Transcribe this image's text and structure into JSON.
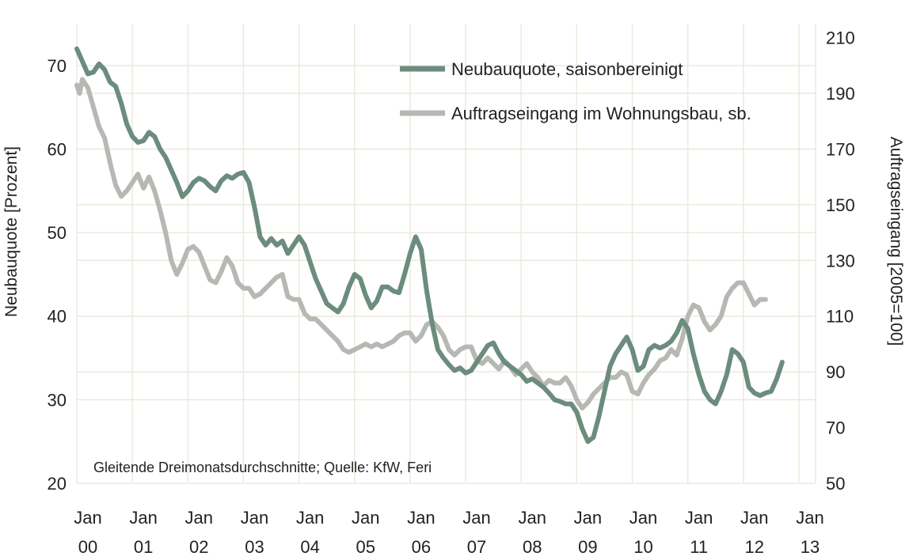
{
  "chart_data": {
    "type": "line",
    "ylabel": "Neubauquote [Prozent]",
    "y2label": "Auftragseingang [2005=100]",
    "ylim": [
      20,
      75
    ],
    "y2lim": [
      50,
      215
    ],
    "yticks": [
      20,
      30,
      40,
      50,
      60,
      70
    ],
    "y2ticks": [
      50,
      70,
      90,
      110,
      130,
      150,
      170,
      190,
      210
    ],
    "xlim": [
      2000,
      2013.3
    ],
    "xticks": [
      {
        "value": 2000,
        "line1": "Jan",
        "line2": "00"
      },
      {
        "value": 2001,
        "line1": "Jan",
        "line2": "01"
      },
      {
        "value": 2002,
        "line1": "Jan",
        "line2": "02"
      },
      {
        "value": 2003,
        "line1": "Jan",
        "line2": "03"
      },
      {
        "value": 2004,
        "line1": "Jan",
        "line2": "04"
      },
      {
        "value": 2005,
        "line1": "Jan",
        "line2": "05"
      },
      {
        "value": 2006,
        "line1": "Jan",
        "line2": "06"
      },
      {
        "value": 2007,
        "line1": "Jan",
        "line2": "07"
      },
      {
        "value": 2008,
        "line1": "Jan",
        "line2": "08"
      },
      {
        "value": 2009,
        "line1": "Jan",
        "line2": "09"
      },
      {
        "value": 2010,
        "line1": "Jan",
        "line2": "10"
      },
      {
        "value": 2011,
        "line1": "Jan",
        "line2": "11"
      },
      {
        "value": 2012,
        "line1": "Jan",
        "line2": "12"
      },
      {
        "value": 2013,
        "line1": "Jan",
        "line2": "13"
      }
    ],
    "grid": true,
    "legend_position": "top-right",
    "note": "Gleitende Dreimonatsdurchschnitte; Quelle: KfW, Feri",
    "series": [
      {
        "name": "Neubauquote, saisonbereinigt",
        "axis": "left",
        "color": "#6b8c7e",
        "points": [
          [
            2000.0,
            72.0
          ],
          [
            2000.1,
            70.5
          ],
          [
            2000.2,
            69.0
          ],
          [
            2000.3,
            69.2
          ],
          [
            2000.4,
            70.2
          ],
          [
            2000.5,
            69.5
          ],
          [
            2000.6,
            68.0
          ],
          [
            2000.7,
            67.5
          ],
          [
            2000.8,
            65.5
          ],
          [
            2000.9,
            63.0
          ],
          [
            2001.0,
            61.5
          ],
          [
            2001.1,
            60.8
          ],
          [
            2001.2,
            61.0
          ],
          [
            2001.3,
            62.0
          ],
          [
            2001.4,
            61.5
          ],
          [
            2001.5,
            60.0
          ],
          [
            2001.6,
            59.0
          ],
          [
            2001.7,
            57.5
          ],
          [
            2001.8,
            56.0
          ],
          [
            2001.9,
            54.3
          ],
          [
            2002.0,
            55.0
          ],
          [
            2002.1,
            56.0
          ],
          [
            2002.2,
            56.5
          ],
          [
            2002.3,
            56.2
          ],
          [
            2002.4,
            55.5
          ],
          [
            2002.5,
            55.0
          ],
          [
            2002.6,
            56.2
          ],
          [
            2002.7,
            56.8
          ],
          [
            2002.8,
            56.5
          ],
          [
            2002.9,
            57.0
          ],
          [
            2003.0,
            57.2
          ],
          [
            2003.1,
            56.0
          ],
          [
            2003.2,
            53.0
          ],
          [
            2003.3,
            49.5
          ],
          [
            2003.4,
            48.5
          ],
          [
            2003.5,
            49.3
          ],
          [
            2003.6,
            48.5
          ],
          [
            2003.7,
            49.0
          ],
          [
            2003.8,
            47.5
          ],
          [
            2003.9,
            48.5
          ],
          [
            2004.0,
            49.5
          ],
          [
            2004.1,
            48.5
          ],
          [
            2004.2,
            46.5
          ],
          [
            2004.3,
            44.5
          ],
          [
            2004.4,
            43.0
          ],
          [
            2004.5,
            41.5
          ],
          [
            2004.6,
            41.0
          ],
          [
            2004.7,
            40.5
          ],
          [
            2004.8,
            41.5
          ],
          [
            2004.9,
            43.5
          ],
          [
            2005.0,
            45.0
          ],
          [
            2005.1,
            44.5
          ],
          [
            2005.2,
            42.5
          ],
          [
            2005.3,
            41.0
          ],
          [
            2005.4,
            41.8
          ],
          [
            2005.5,
            43.5
          ],
          [
            2005.6,
            43.5
          ],
          [
            2005.7,
            43.0
          ],
          [
            2005.8,
            42.8
          ],
          [
            2005.9,
            45.0
          ],
          [
            2006.0,
            47.5
          ],
          [
            2006.1,
            49.5
          ],
          [
            2006.2,
            48.0
          ],
          [
            2006.3,
            43.0
          ],
          [
            2006.4,
            39.0
          ],
          [
            2006.5,
            36.0
          ],
          [
            2006.6,
            35.0
          ],
          [
            2006.7,
            34.2
          ],
          [
            2006.8,
            33.5
          ],
          [
            2006.9,
            33.8
          ],
          [
            2007.0,
            33.2
          ],
          [
            2007.1,
            33.5
          ],
          [
            2007.2,
            34.5
          ],
          [
            2007.3,
            35.5
          ],
          [
            2007.4,
            36.5
          ],
          [
            2007.5,
            36.8
          ],
          [
            2007.6,
            35.5
          ],
          [
            2007.7,
            34.5
          ],
          [
            2007.8,
            34.0
          ],
          [
            2007.9,
            33.5
          ],
          [
            2008.0,
            33.0
          ],
          [
            2008.1,
            32.2
          ],
          [
            2008.2,
            32.5
          ],
          [
            2008.3,
            32.0
          ],
          [
            2008.4,
            31.5
          ],
          [
            2008.5,
            30.8
          ],
          [
            2008.6,
            30.0
          ],
          [
            2008.7,
            29.8
          ],
          [
            2008.8,
            29.5
          ],
          [
            2008.9,
            29.5
          ],
          [
            2009.0,
            28.5
          ],
          [
            2009.1,
            26.5
          ],
          [
            2009.2,
            25.0
          ],
          [
            2009.3,
            25.5
          ],
          [
            2009.4,
            28.0
          ],
          [
            2009.5,
            31.0
          ],
          [
            2009.6,
            34.0
          ],
          [
            2009.7,
            35.5
          ],
          [
            2009.8,
            36.5
          ],
          [
            2009.9,
            37.5
          ],
          [
            2010.0,
            36.0
          ],
          [
            2010.1,
            33.5
          ],
          [
            2010.2,
            34.0
          ],
          [
            2010.3,
            36.0
          ],
          [
            2010.4,
            36.5
          ],
          [
            2010.5,
            36.2
          ],
          [
            2010.6,
            36.5
          ],
          [
            2010.7,
            37.0
          ],
          [
            2010.8,
            38.0
          ],
          [
            2010.9,
            39.5
          ],
          [
            2011.0,
            38.5
          ],
          [
            2011.1,
            35.5
          ],
          [
            2011.2,
            33.0
          ],
          [
            2011.3,
            31.0
          ],
          [
            2011.4,
            30.0
          ],
          [
            2011.5,
            29.5
          ],
          [
            2011.6,
            31.0
          ],
          [
            2011.7,
            33.0
          ],
          [
            2011.8,
            36.0
          ],
          [
            2011.9,
            35.5
          ],
          [
            2012.0,
            34.5
          ],
          [
            2012.1,
            31.5
          ],
          [
            2012.2,
            30.8
          ],
          [
            2012.3,
            30.5
          ],
          [
            2012.4,
            30.8
          ],
          [
            2012.5,
            31.0
          ],
          [
            2012.6,
            32.5
          ],
          [
            2012.7,
            34.5
          ]
        ]
      },
      {
        "name": "Auftragseingang im Wohnungsbau, sb.",
        "axis": "right",
        "color": "#b6b9b3",
        "points": [
          [
            2000.0,
            193
          ],
          [
            2000.05,
            190
          ],
          [
            2000.1,
            195
          ],
          [
            2000.2,
            192
          ],
          [
            2000.3,
            185
          ],
          [
            2000.4,
            178
          ],
          [
            2000.5,
            174
          ],
          [
            2000.6,
            165
          ],
          [
            2000.7,
            157
          ],
          [
            2000.8,
            153
          ],
          [
            2000.9,
            155
          ],
          [
            2001.0,
            158
          ],
          [
            2001.1,
            161
          ],
          [
            2001.2,
            156
          ],
          [
            2001.3,
            160
          ],
          [
            2001.4,
            155
          ],
          [
            2001.5,
            148
          ],
          [
            2001.6,
            140
          ],
          [
            2001.7,
            130
          ],
          [
            2001.8,
            125
          ],
          [
            2001.9,
            129
          ],
          [
            2002.0,
            134
          ],
          [
            2002.1,
            135
          ],
          [
            2002.2,
            133
          ],
          [
            2002.3,
            128
          ],
          [
            2002.4,
            123
          ],
          [
            2002.5,
            122
          ],
          [
            2002.6,
            126
          ],
          [
            2002.7,
            131
          ],
          [
            2002.8,
            128
          ],
          [
            2002.9,
            122
          ],
          [
            2003.0,
            120
          ],
          [
            2003.1,
            120
          ],
          [
            2003.2,
            117
          ],
          [
            2003.3,
            118
          ],
          [
            2003.4,
            120
          ],
          [
            2003.5,
            122
          ],
          [
            2003.6,
            124
          ],
          [
            2003.7,
            125
          ],
          [
            2003.8,
            117
          ],
          [
            2003.9,
            116
          ],
          [
            2004.0,
            116
          ],
          [
            2004.1,
            111
          ],
          [
            2004.2,
            109
          ],
          [
            2004.3,
            109
          ],
          [
            2004.4,
            107
          ],
          [
            2004.5,
            105
          ],
          [
            2004.6,
            103
          ],
          [
            2004.7,
            101
          ],
          [
            2004.8,
            98
          ],
          [
            2004.9,
            97
          ],
          [
            2005.0,
            98
          ],
          [
            2005.1,
            99
          ],
          [
            2005.2,
            100
          ],
          [
            2005.3,
            99
          ],
          [
            2005.4,
            100
          ],
          [
            2005.5,
            99
          ],
          [
            2005.6,
            100
          ],
          [
            2005.7,
            101
          ],
          [
            2005.8,
            103
          ],
          [
            2005.9,
            104
          ],
          [
            2006.0,
            104
          ],
          [
            2006.1,
            101
          ],
          [
            2006.2,
            103
          ],
          [
            2006.3,
            107
          ],
          [
            2006.4,
            108
          ],
          [
            2006.5,
            106
          ],
          [
            2006.6,
            103
          ],
          [
            2006.7,
            98
          ],
          [
            2006.8,
            96
          ],
          [
            2006.9,
            98
          ],
          [
            2007.0,
            99
          ],
          [
            2007.1,
            99
          ],
          [
            2007.2,
            94
          ],
          [
            2007.3,
            93
          ],
          [
            2007.4,
            95
          ],
          [
            2007.5,
            93
          ],
          [
            2007.6,
            91
          ],
          [
            2007.7,
            94
          ],
          [
            2007.8,
            92
          ],
          [
            2007.9,
            89
          ],
          [
            2008.0,
            91
          ],
          [
            2008.1,
            93
          ],
          [
            2008.2,
            90
          ],
          [
            2008.3,
            88
          ],
          [
            2008.4,
            85
          ],
          [
            2008.5,
            87
          ],
          [
            2008.6,
            86
          ],
          [
            2008.7,
            86
          ],
          [
            2008.8,
            88
          ],
          [
            2008.9,
            85
          ],
          [
            2009.0,
            80
          ],
          [
            2009.1,
            77
          ],
          [
            2009.2,
            79
          ],
          [
            2009.3,
            82
          ],
          [
            2009.4,
            84
          ],
          [
            2009.5,
            86
          ],
          [
            2009.6,
            88
          ],
          [
            2009.7,
            88
          ],
          [
            2009.8,
            90
          ],
          [
            2009.9,
            89
          ],
          [
            2010.0,
            83
          ],
          [
            2010.1,
            82
          ],
          [
            2010.2,
            86
          ],
          [
            2010.3,
            89
          ],
          [
            2010.4,
            91
          ],
          [
            2010.5,
            94
          ],
          [
            2010.6,
            95
          ],
          [
            2010.7,
            98
          ],
          [
            2010.8,
            96
          ],
          [
            2010.9,
            102
          ],
          [
            2011.0,
            110
          ],
          [
            2011.1,
            114
          ],
          [
            2011.2,
            113
          ],
          [
            2011.3,
            108
          ],
          [
            2011.4,
            105
          ],
          [
            2011.5,
            107
          ],
          [
            2011.6,
            110
          ],
          [
            2011.7,
            117
          ],
          [
            2011.8,
            120
          ],
          [
            2011.9,
            122
          ],
          [
            2012.0,
            122
          ],
          [
            2012.1,
            118
          ],
          [
            2012.2,
            114
          ],
          [
            2012.3,
            116
          ],
          [
            2012.4,
            116
          ]
        ]
      }
    ]
  }
}
